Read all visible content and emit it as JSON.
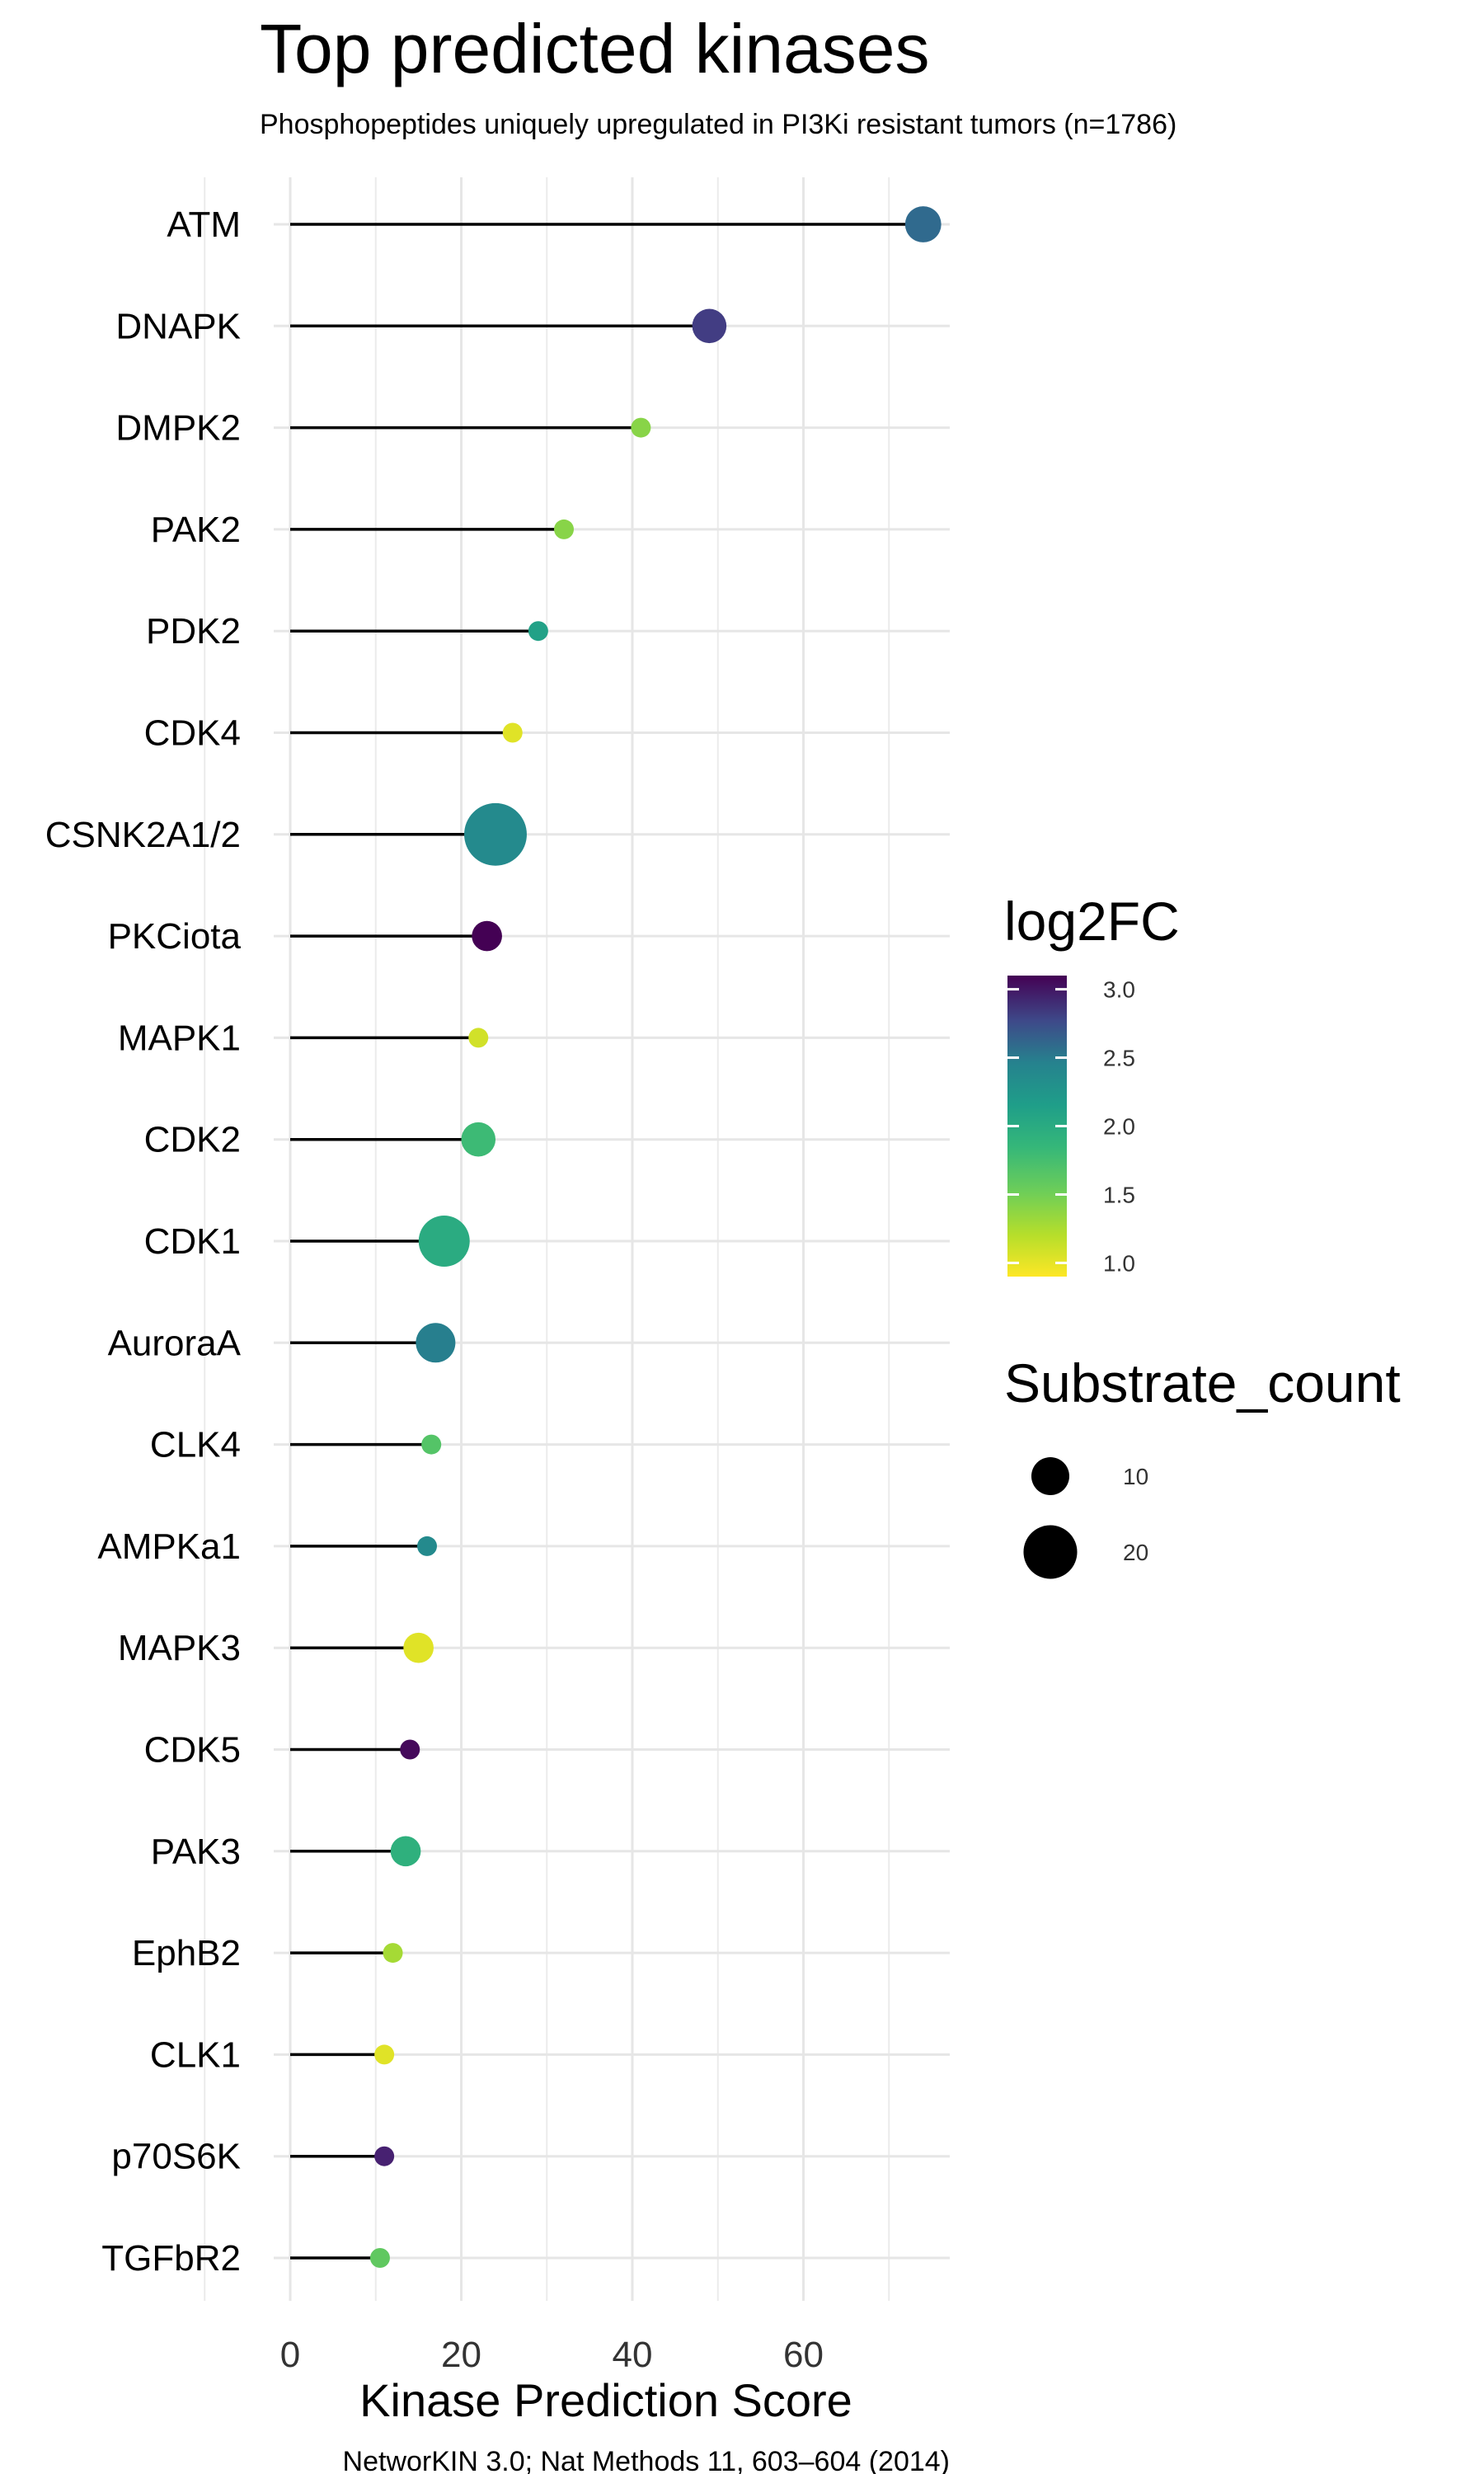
{
  "chart_data": {
    "type": "lollipop",
    "title": "Top predicted kinases",
    "subtitle": "Phosphopeptides uniquely upregulated in PI3Ki resistant tumors (n=1786)",
    "xlabel": "Kinase Prediction Score",
    "ylabel": "",
    "caption": "NetworKIN 3.0; Nat Methods 11, 603–604 (2014)",
    "xlim": [
      -3.5,
      77.5
    ],
    "xticks": [
      0,
      20,
      40,
      60
    ],
    "grid": true,
    "legend_position": "right",
    "color_legend": {
      "title": "log2FC",
      "ticks": [
        3.0,
        2.5,
        2.0,
        1.5,
        1.0
      ],
      "tick_labels": [
        "3.0",
        "2.5",
        "2.0",
        "1.5",
        "1.0"
      ],
      "range": [
        0.9,
        3.1
      ],
      "palette": "viridis"
    },
    "size_legend": {
      "title": "Substrate_count",
      "values": [
        10,
        20
      ],
      "labels": [
        "10",
        "20"
      ]
    },
    "points": [
      {
        "kinase": "ATM",
        "score": 74,
        "log2FC": 2.35,
        "substrate_count": 10
      },
      {
        "kinase": "DNAPK",
        "score": 49,
        "log2FC": 2.7,
        "substrate_count": 9
      },
      {
        "kinase": "DMPK2",
        "score": 41,
        "log2FC": 1.3,
        "substrate_count": 3
      },
      {
        "kinase": "PAK2",
        "score": 32,
        "log2FC": 1.3,
        "substrate_count": 3
      },
      {
        "kinase": "PDK2",
        "score": 29,
        "log2FC": 1.85,
        "substrate_count": 3
      },
      {
        "kinase": "CDK4",
        "score": 26,
        "log2FC": 1.0,
        "substrate_count": 3
      },
      {
        "kinase": "CSNK2A1/2",
        "score": 24,
        "log2FC": 2.05,
        "substrate_count": 30
      },
      {
        "kinase": "PKCiota",
        "score": 23,
        "log2FC": 3.1,
        "substrate_count": 7
      },
      {
        "kinase": "MAPK1",
        "score": 22,
        "log2FC": 1.05,
        "substrate_count": 3
      },
      {
        "kinase": "CDK2",
        "score": 22,
        "log2FC": 1.6,
        "substrate_count": 9
      },
      {
        "kinase": "CDK1",
        "score": 18,
        "log2FC": 1.75,
        "substrate_count": 20
      },
      {
        "kinase": "AuroraA",
        "score": 17,
        "log2FC": 2.15,
        "substrate_count": 12
      },
      {
        "kinase": "CLK4",
        "score": 16.5,
        "log2FC": 1.5,
        "substrate_count": 3
      },
      {
        "kinase": "AMPKa1",
        "score": 16,
        "log2FC": 2.05,
        "substrate_count": 3
      },
      {
        "kinase": "MAPK3",
        "score": 15,
        "log2FC": 1.0,
        "substrate_count": 7
      },
      {
        "kinase": "CDK5",
        "score": 14,
        "log2FC": 3.05,
        "substrate_count": 3
      },
      {
        "kinase": "PAK3",
        "score": 13.5,
        "log2FC": 1.7,
        "substrate_count": 7
      },
      {
        "kinase": "EphB2",
        "score": 12,
        "log2FC": 1.2,
        "substrate_count": 3
      },
      {
        "kinase": "CLK1",
        "score": 11,
        "log2FC": 1.0,
        "substrate_count": 3
      },
      {
        "kinase": "p70S6K",
        "score": 11,
        "log2FC": 2.9,
        "substrate_count": 3
      },
      {
        "kinase": "TGFbR2",
        "score": 10.5,
        "log2FC": 1.45,
        "substrate_count": 3
      }
    ]
  }
}
